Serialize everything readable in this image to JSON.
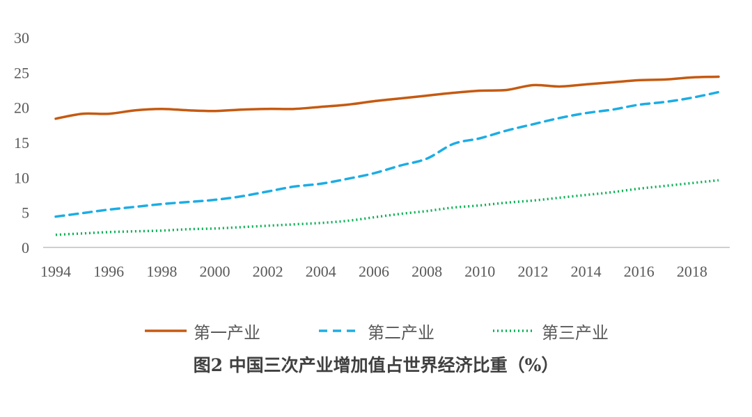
{
  "chart_data": {
    "type": "line",
    "title": "图2 中国三次产业增加值占世界经济比重（%）",
    "xlabel": "",
    "ylabel": "",
    "ylim": [
      0,
      30
    ],
    "yticks": [
      0,
      5,
      10,
      15,
      20,
      25,
      30
    ],
    "xtick_labels": [
      "1994",
      "1996",
      "1998",
      "2000",
      "2002",
      "2004",
      "2006",
      "2008",
      "2010",
      "2012",
      "2014",
      "2016",
      "2018"
    ],
    "x": [
      1994,
      1995,
      1996,
      1997,
      1998,
      1999,
      2000,
      2001,
      2002,
      2003,
      2004,
      2005,
      2006,
      2007,
      2008,
      2009,
      2010,
      2011,
      2012,
      2013,
      2014,
      2015,
      2016,
      2017,
      2018,
      2019
    ],
    "series": [
      {
        "name": "第一产业",
        "color": "#C55A11",
        "style": "solid",
        "values": [
          18.4,
          19.1,
          19.1,
          19.6,
          19.8,
          19.6,
          19.5,
          19.7,
          19.8,
          19.8,
          20.1,
          20.4,
          20.9,
          21.3,
          21.7,
          22.1,
          22.4,
          22.5,
          23.2,
          23.0,
          23.3,
          23.6,
          23.9,
          24.0,
          24.3,
          24.4
        ]
      },
      {
        "name": "第二产业",
        "color": "#1CADE4",
        "style": "dashed",
        "values": [
          4.4,
          4.9,
          5.4,
          5.8,
          6.2,
          6.5,
          6.8,
          7.3,
          8.0,
          8.7,
          9.1,
          9.8,
          10.6,
          11.7,
          12.7,
          14.8,
          15.6,
          16.7,
          17.6,
          18.5,
          19.2,
          19.7,
          20.4,
          20.8,
          21.4,
          22.2
        ]
      },
      {
        "name": "第三产业",
        "color": "#00B050",
        "style": "dotted",
        "values": [
          1.8,
          2.0,
          2.2,
          2.3,
          2.4,
          2.6,
          2.7,
          2.9,
          3.1,
          3.3,
          3.5,
          3.8,
          4.3,
          4.8,
          5.2,
          5.7,
          6.0,
          6.4,
          6.7,
          7.1,
          7.5,
          7.9,
          8.4,
          8.8,
          9.2,
          9.6
        ]
      }
    ],
    "legend_position": "bottom",
    "grid": false
  }
}
